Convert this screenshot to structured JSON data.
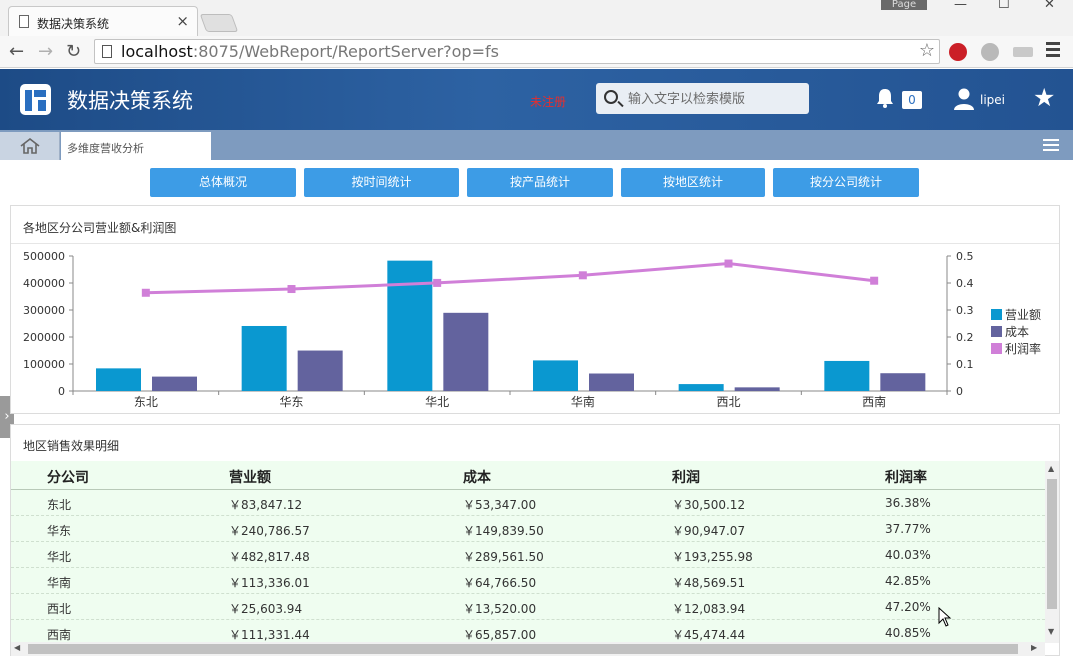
{
  "browser": {
    "tab_title": "数据决策系统",
    "close_glyph": "×",
    "page_button": "Page",
    "url_host": "localhost",
    "url_rest": ":8075/WebReport/ReportServer?op=fs"
  },
  "header": {
    "app_title": "数据决策系统",
    "unregistered": "未注册",
    "search_placeholder": "输入文字以检索模版",
    "notification_count": "0",
    "username": "lipei"
  },
  "tabs": {
    "active_tab": "多维度营收分析"
  },
  "nav_buttons": [
    {
      "label": "总体概况"
    },
    {
      "label": "按时间统计"
    },
    {
      "label": "按产品统计"
    },
    {
      "label": "按地区统计"
    },
    {
      "label": "按分公司统计"
    }
  ],
  "chart_panel": {
    "title": "各地区分公司营业额&利润图"
  },
  "chart_data": {
    "type": "bar",
    "title": "各地区分公司营业额&利润图",
    "categories": [
      "东北",
      "华东",
      "华北",
      "华南",
      "西北",
      "西南"
    ],
    "series": [
      {
        "name": "营业额",
        "type": "bar",
        "axis": "left",
        "color": "#0a98d0",
        "values": [
          83847.12,
          240786.57,
          482817.48,
          113336.01,
          25603.94,
          111331.44
        ]
      },
      {
        "name": "成本",
        "type": "bar",
        "axis": "left",
        "color": "#63639e",
        "values": [
          53347.0,
          149839.5,
          289561.5,
          64766.5,
          13520.0,
          65857.0
        ]
      },
      {
        "name": "利润率",
        "type": "line",
        "axis": "right",
        "color": "#d07fd8",
        "values": [
          0.3638,
          0.3777,
          0.4003,
          0.4285,
          0.472,
          0.4085
        ]
      }
    ],
    "left_axis": {
      "ticks": [
        "500000",
        "400000",
        "300000",
        "200000",
        "100000",
        "0"
      ],
      "min": 0,
      "max": 500000
    },
    "right_axis": {
      "ticks": [
        "0.5",
        "0.4",
        "0.3",
        "0.2",
        "0.1",
        "0"
      ],
      "min": 0,
      "max": 0.5
    },
    "legend_position": "right"
  },
  "table_panel": {
    "title": "地区销售效果明细",
    "columns": [
      "分公司",
      "营业额",
      "成本",
      "利润",
      "利润率"
    ],
    "rows": [
      [
        "东北",
        "￥83,847.12",
        "￥53,347.00",
        "￥30,500.12",
        "36.38%"
      ],
      [
        "华东",
        "￥240,786.57",
        "￥149,839.50",
        "￥90,947.07",
        "37.77%"
      ],
      [
        "华北",
        "￥482,817.48",
        "￥289,561.50",
        "￥193,255.98",
        "40.03%"
      ],
      [
        "华南",
        "￥113,336.01",
        "￥64,766.50",
        "￥48,569.51",
        "42.85%"
      ],
      [
        "西北",
        "￥25,603.94",
        "￥13,520.00",
        "￥12,083.94",
        "47.20%"
      ],
      [
        "西南",
        "￥111,331.44",
        "￥65,857.00",
        "￥45,474.44",
        "40.85%"
      ]
    ]
  }
}
